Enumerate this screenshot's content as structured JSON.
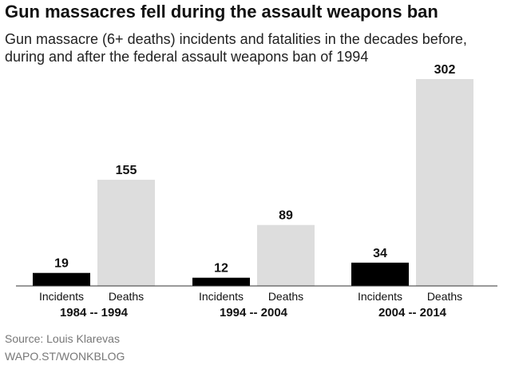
{
  "header": {
    "title": "Gun massacres fell during the assault weapons ban",
    "subtitle": "Gun massacre (6+ deaths) incidents and fatalities in the decades before, during and after the federal assault weapons ban of 1994"
  },
  "footer": {
    "source": "Source: Louis Klarevas",
    "credit": "WAPO.ST/WONKBLOG"
  },
  "colors": {
    "incidents": "#000000",
    "deaths": "#dddddd",
    "text": "#111111",
    "axis": "#333333"
  },
  "chart_data": {
    "type": "bar",
    "title": "Gun massacres fell during the assault weapons ban",
    "subtitle": "Gun massacre (6+ deaths) incidents and fatalities in the decades before, during and after the federal assault weapons ban of 1994",
    "categories": [
      "1984 -- 1994",
      "1994 -- 2004",
      "2004 -- 2014"
    ],
    "series": [
      {
        "name": "Incidents",
        "values": [
          19,
          12,
          34
        ]
      },
      {
        "name": "Deaths",
        "values": [
          155,
          89,
          302
        ]
      }
    ],
    "xlabel": "",
    "ylabel": "",
    "ylim": [
      0,
      302
    ],
    "grid": false,
    "legend": "none",
    "data_labels": true
  }
}
